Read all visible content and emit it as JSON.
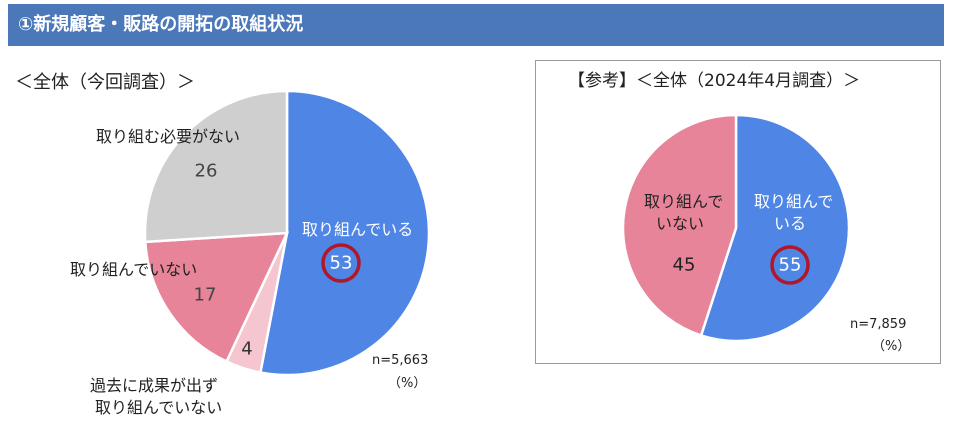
{
  "header": {
    "title": "①新規顧客・販路の開拓の取組状況"
  },
  "chart_data": [
    {
      "type": "pie",
      "title": "＜全体（今回調査）＞",
      "slices": [
        {
          "label": "取り組んでいる",
          "value": 53,
          "color": "#4f86e6",
          "text_color": "#ffffff",
          "highlight": true
        },
        {
          "label": "過去に成果が出ず取り組んでいない",
          "value": 4,
          "color": "#f5c6d0",
          "text_color": "#333333",
          "highlight": false
        },
        {
          "label": "取り組んでいない",
          "value": 17,
          "color": "#e8849a",
          "text_color": "#444444",
          "highlight": false
        },
        {
          "label": "取り組む必要がない",
          "value": 26,
          "color": "#cfcfcf",
          "text_color": "#444444",
          "highlight": false
        }
      ],
      "value_labels": [
        "53",
        "4",
        "17",
        "26"
      ],
      "sample_note": "n=5,663",
      "unit_note": "（%）"
    },
    {
      "type": "pie",
      "title": "【参考】＜全体（2024年4月調査）＞",
      "slices": [
        {
          "label": "取り組んでいる",
          "value": 55,
          "color": "#4f86e6",
          "text_color": "#ffffff",
          "highlight": true
        },
        {
          "label": "取り組んでいない",
          "value": 45,
          "color": "#e8849a",
          "text_color": "#222222",
          "highlight": false
        }
      ],
      "value_labels": [
        "55",
        "45"
      ],
      "sample_note": "n=7,859",
      "unit_note": "（%）"
    }
  ],
  "labels": {
    "c1_inside_label": "取り組んでいる",
    "c1_outside_necessary": "取り組む必要がない",
    "c1_outside_not": "取り組んでいない",
    "c1_outside_past_line1": "過去に成果が出ず",
    "c1_outside_past_line2": "取り組んでいない",
    "c2_inside_blue_line1": "取り組んで",
    "c2_inside_blue_line2": "いる",
    "c2_inside_pink_line1": "取り組んで",
    "c2_inside_pink_line2": "いない"
  },
  "highlight_color": "#b0182a"
}
